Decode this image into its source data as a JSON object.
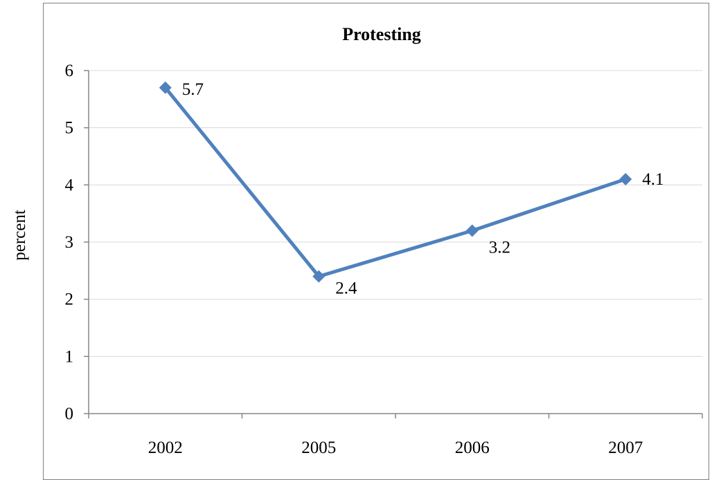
{
  "chart_data": {
    "type": "line",
    "title": "Protesting",
    "xlabel": "",
    "ylabel": "percent",
    "categories": [
      "2002",
      "2005",
      "2006",
      "2007"
    ],
    "series": [
      {
        "values": [
          5.7,
          2.4,
          3.2,
          4.1
        ]
      }
    ],
    "data_labels": [
      "5.7",
      "2.4",
      "3.2",
      "4.1"
    ],
    "y_ticks": [
      "0",
      "1",
      "2",
      "3",
      "4",
      "5",
      "6"
    ],
    "ylim": [
      0,
      6
    ],
    "grid": true,
    "legend": "none",
    "colors": {
      "series": "#4f81bd",
      "grid": "#d9d9d9",
      "axis": "#868686"
    }
  }
}
